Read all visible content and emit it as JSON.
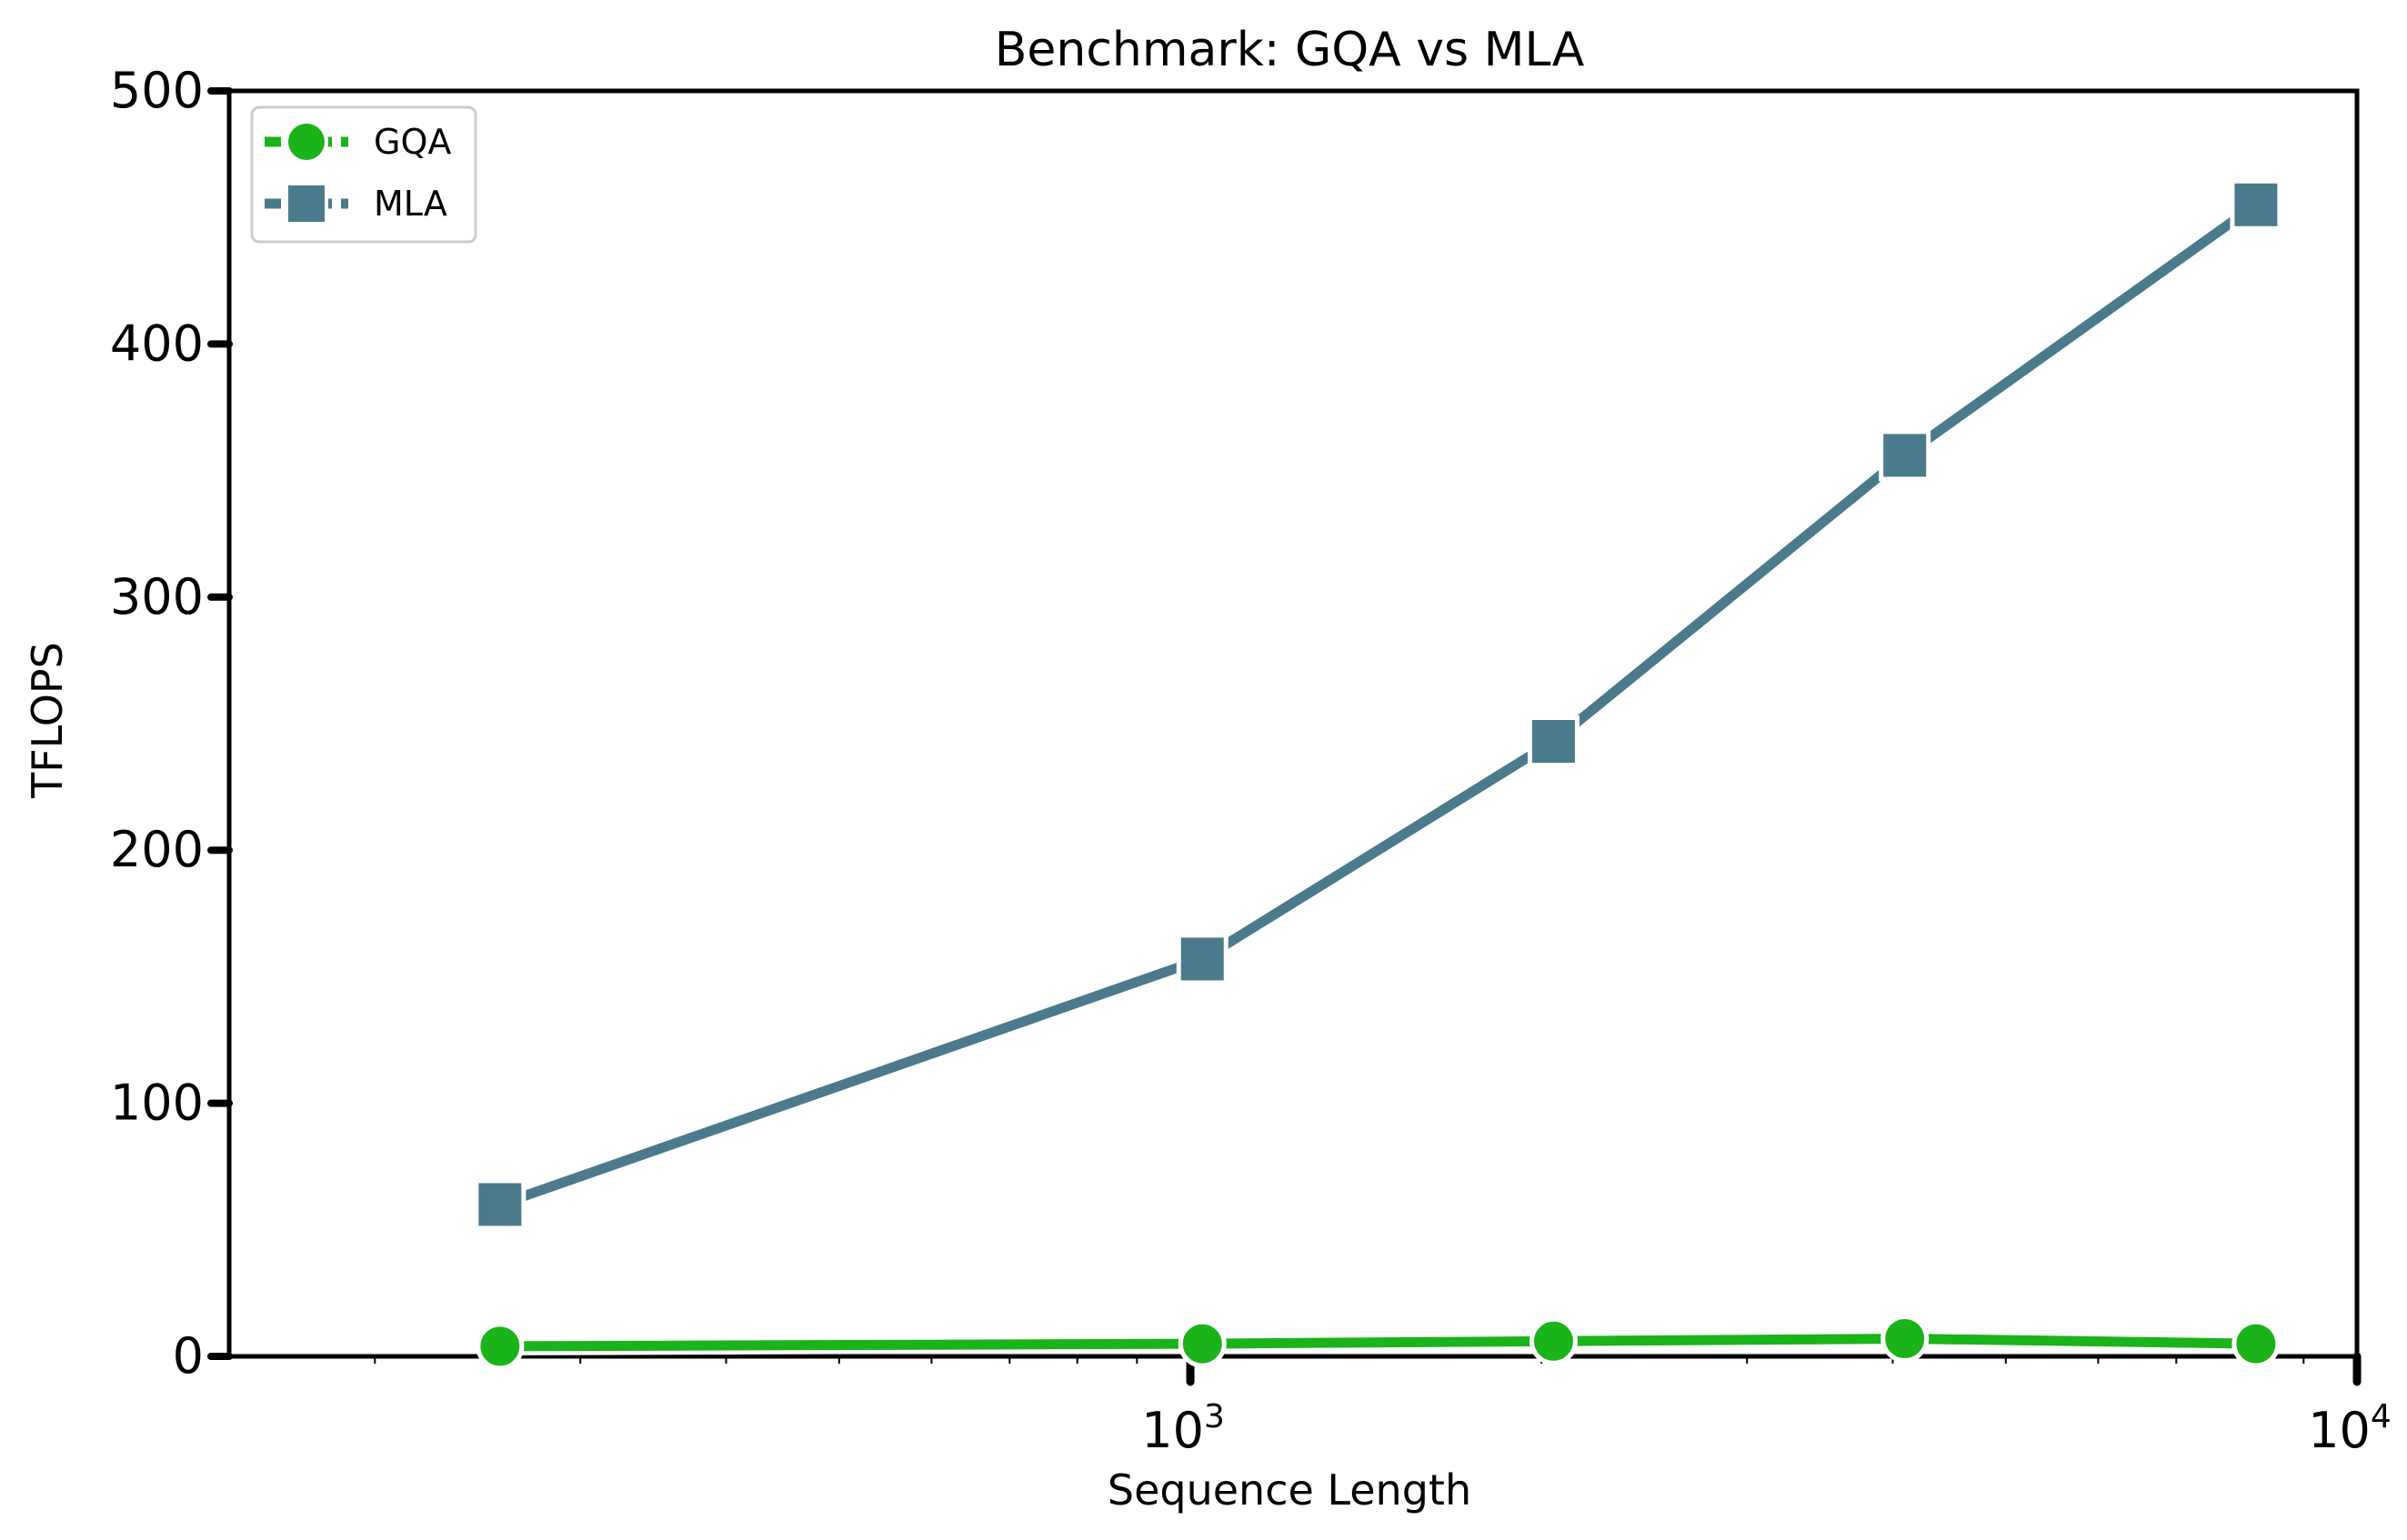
{
  "chart_data": {
    "type": "line",
    "title": "Benchmark: GQA vs MLA",
    "xlabel": "Sequence Length",
    "ylabel": "TFLOPS",
    "xscale": "log",
    "xlim": [
      150,
      10000
    ],
    "ylim": [
      0,
      500
    ],
    "x": [
      256,
      1024,
      2048,
      4096,
      8192
    ],
    "x_ticks": [
      {
        "value": 1000,
        "base": "10",
        "exp": "3"
      },
      {
        "value": 10000,
        "base": "10",
        "exp": "4"
      }
    ],
    "y_ticks": [
      0,
      100,
      200,
      300,
      400,
      500
    ],
    "series": [
      {
        "name": "GQA",
        "color": "#1ab31a",
        "marker": "circle",
        "values": [
          4,
          5,
          6,
          7,
          5
        ]
      },
      {
        "name": "MLA",
        "color": "#4a7a8c",
        "marker": "square",
        "values": [
          60,
          157,
          243,
          356,
          455
        ]
      }
    ],
    "legend": "top-left",
    "grid": false
  }
}
